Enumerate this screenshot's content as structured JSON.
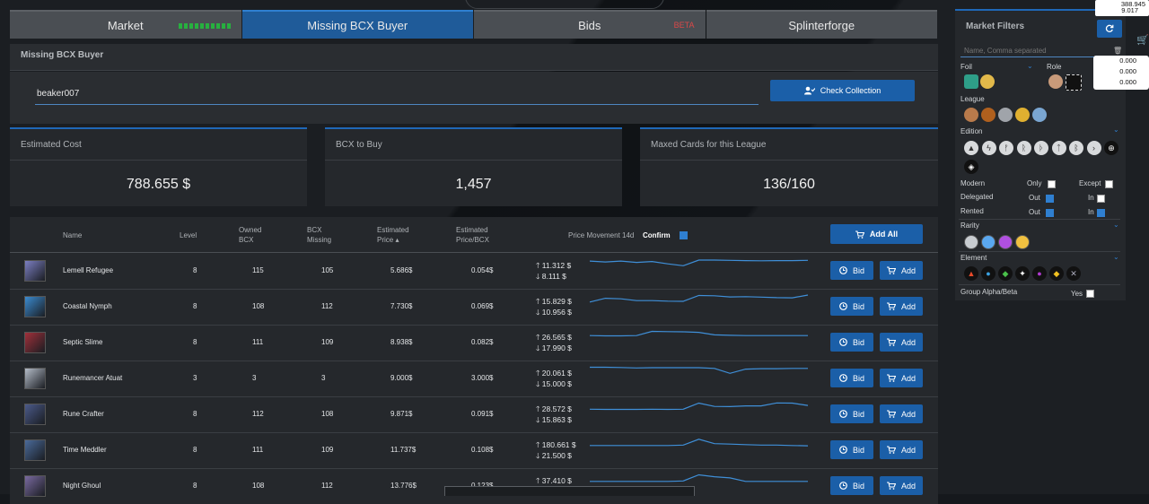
{
  "tabs": [
    {
      "label": "Market",
      "tag": "",
      "active": false
    },
    {
      "label": "Missing BCX Buyer",
      "tag": "",
      "active": true
    },
    {
      "label": "Bids",
      "tag": "BETA",
      "active": false
    },
    {
      "label": "Splinterforge",
      "tag": "",
      "active": false
    }
  ],
  "panel": {
    "title": "Missing BCX Buyer"
  },
  "search": {
    "value": "beaker007",
    "button_label": "Check Collection"
  },
  "stats": [
    {
      "label": "Estimated Cost",
      "value": "788.655 $"
    },
    {
      "label": "BCX to Buy",
      "value": "1,457"
    },
    {
      "label": "Maxed Cards for this League",
      "value": "136/160"
    }
  ],
  "table": {
    "headers": {
      "name": "Name",
      "level": "Level",
      "owned": "Owned BCX",
      "missing": "BCX Missing",
      "price": "Estimated Price",
      "price_bcx": "Estimated Price/BCX",
      "movement": "Price Movement 14d",
      "confirm": "Confirm",
      "add_all": "Add All"
    },
    "bid_label": "Bid",
    "add_label": "Add",
    "rows": [
      {
        "name": "Lemell Refugee",
        "level": "8",
        "owned": "115",
        "missing": "105",
        "price": "5.686$",
        "price_bcx": "0.054$",
        "high": "11.312 $",
        "low": "8.111 $",
        "spark": [
          0.92,
          0.88,
          0.92,
          0.86,
          0.9,
          0.8,
          0.72,
          0.96,
          0.96,
          0.95,
          0.94,
          0.93,
          0.94,
          0.94,
          0.95
        ],
        "color": "#7c7fc2"
      },
      {
        "name": "Coastal Nymph",
        "level": "8",
        "owned": "108",
        "missing": "112",
        "price": "7.730$",
        "price_bcx": "0.069$",
        "high": "15.829 $",
        "low": "10.956 $",
        "spark": [
          0.7,
          0.86,
          0.84,
          0.76,
          0.76,
          0.74,
          0.73,
          0.98,
          0.97,
          0.92,
          0.93,
          0.91,
          0.89,
          0.88,
          1
        ],
        "color": "#3b8bd0"
      },
      {
        "name": "Septic Slime",
        "level": "8",
        "owned": "111",
        "missing": "109",
        "price": "8.938$",
        "price_bcx": "0.082$",
        "high": "26.565 $",
        "low": "17.990 $",
        "spark": [
          0.8,
          0.79,
          0.79,
          0.8,
          0.98,
          0.97,
          0.96,
          0.94,
          0.83,
          0.81,
          0.8,
          0.8,
          0.8,
          0.8,
          0.8
        ],
        "color": "#a0303a"
      },
      {
        "name": "Runemancer Atuat",
        "level": "3",
        "owned": "3",
        "missing": "3",
        "price": "9.000$",
        "price_bcx": "3.000$",
        "high": "20.061 $",
        "low": "15.000 $",
        "spark": [
          0.98,
          0.98,
          0.97,
          0.95,
          0.96,
          0.96,
          0.96,
          0.96,
          0.93,
          0.72,
          0.9,
          0.92,
          0.92,
          0.93,
          0.93
        ],
        "color": "#b4bcc8"
      },
      {
        "name": "Rune Crafter",
        "level": "8",
        "owned": "112",
        "missing": "108",
        "price": "9.871$",
        "price_bcx": "0.091$",
        "high": "28.572 $",
        "low": "15.863 $",
        "spark": [
          0.72,
          0.71,
          0.71,
          0.71,
          0.72,
          0.71,
          0.72,
          0.98,
          0.84,
          0.83,
          0.86,
          0.86,
          0.99,
          0.98,
          0.88
        ],
        "color": "#4b5a8a"
      },
      {
        "name": "Time Meddler",
        "level": "8",
        "owned": "111",
        "missing": "109",
        "price": "11.737$",
        "price_bcx": "0.108$",
        "high": "180.661 $",
        "low": "21.500 $",
        "spark": [
          0.7,
          0.7,
          0.7,
          0.7,
          0.7,
          0.7,
          0.72,
          0.97,
          0.78,
          0.76,
          0.74,
          0.72,
          0.72,
          0.7,
          0.69
        ],
        "color": "#4a6a9a"
      },
      {
        "name": "Night Ghoul",
        "level": "8",
        "owned": "108",
        "missing": "112",
        "price": "13.776$",
        "price_bcx": "0.123$",
        "high": "37.410 $",
        "low": "",
        "spark": [
          0.7,
          0.7,
          0.7,
          0.7,
          0.7,
          0.7,
          0.72,
          0.98,
          0.9,
          0.85,
          0.7,
          0.7,
          0.7,
          0.7,
          0.7
        ],
        "color": "#7a6aa0"
      }
    ]
  },
  "filters": {
    "title": "Market Filters",
    "name_placeholder": "Name, Comma separated",
    "foil": "Foil",
    "role": "Role",
    "league": "League",
    "edition": "Edition",
    "modern": "Modern",
    "only": "Only",
    "except": "Except",
    "delegated": "Delegated",
    "rented": "Rented",
    "out": "Out",
    "in": "In",
    "rarity": "Rarity",
    "element": "Element",
    "group": "Group Alpha/Beta",
    "yes": "Yes"
  },
  "wallet": {
    "line1": "388,945",
    "line2": "9.017",
    "bal1": "0.000",
    "bal2": "0.000",
    "bal3": "0.000"
  }
}
